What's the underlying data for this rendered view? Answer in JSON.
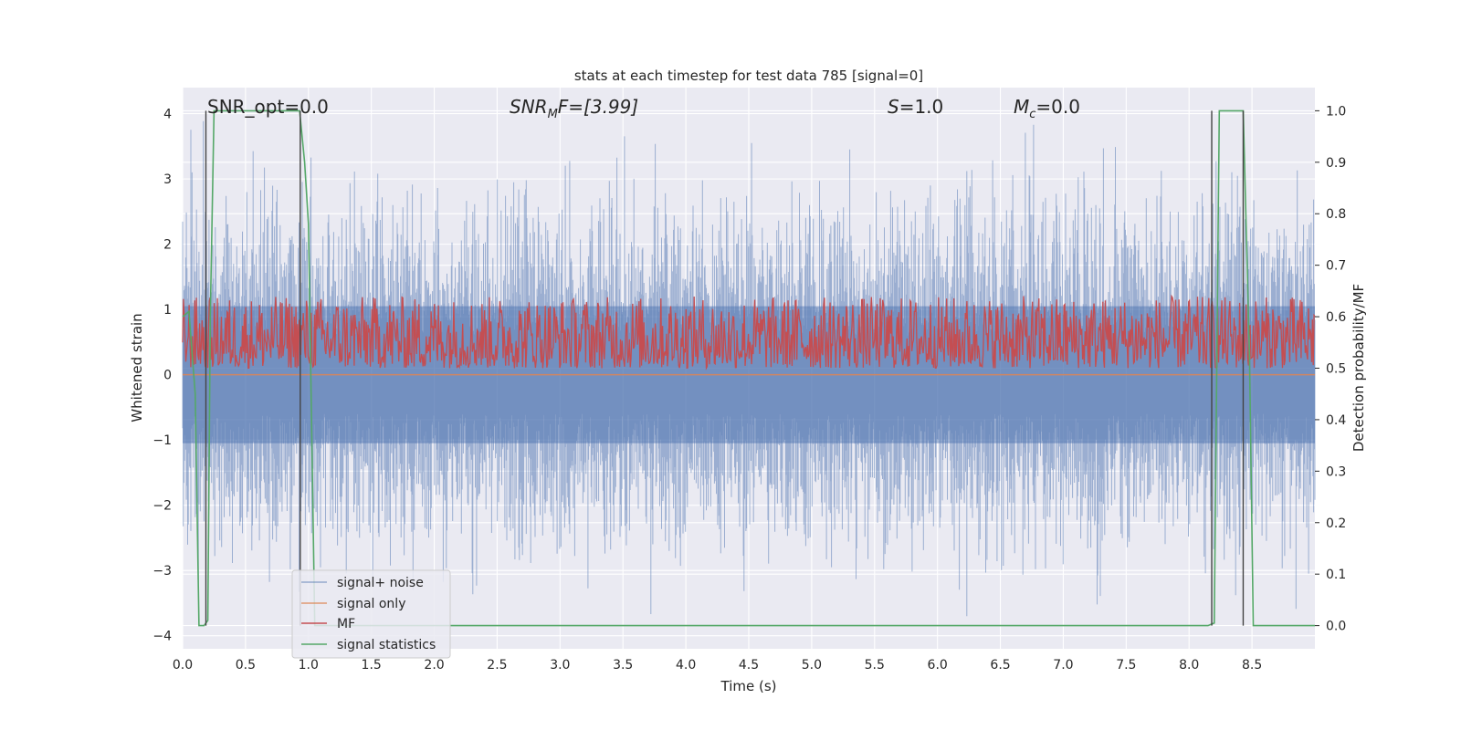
{
  "chart_data": {
    "type": "line",
    "title": "stats at each timestep for test data 785 [signal=0]",
    "xlabel": "Time (s)",
    "ylabel": "Whitened strain",
    "ylabel_right": "Detection probability/MF",
    "xlim": [
      0.0,
      9.0
    ],
    "ylim": [
      -4.2,
      4.4
    ],
    "ylim_right": [
      -0.045,
      1.045
    ],
    "xticks": [
      "0.0",
      "0.5",
      "1.0",
      "1.5",
      "2.0",
      "2.5",
      "3.0",
      "3.5",
      "4.0",
      "4.5",
      "5.0",
      "5.5",
      "6.0",
      "6.5",
      "7.0",
      "7.5",
      "8.0",
      "8.5"
    ],
    "yticks_left": [
      "4",
      "3",
      "2",
      "1",
      "0",
      "−1",
      "−2",
      "−3",
      "−4"
    ],
    "yticks_right": [
      "1.0",
      "0.9",
      "0.8",
      "0.7",
      "0.6",
      "0.5",
      "0.4",
      "0.3",
      "0.2",
      "0.1",
      "0.0"
    ],
    "annotations": {
      "snr_opt": "SNR_opt=0.0",
      "snr_mf_sym": "SNR",
      "snr_mf_sub": "M",
      "snr_mf_rest": "F=[3.99]",
      "s_sym": "S",
      "s_rest": "=1.0",
      "mc_sym": "M",
      "mc_sub": "c",
      "mc_rest": "=0.0"
    },
    "legend_position": "lower-left",
    "grid": true,
    "colors": {
      "background": "#eaeaf2",
      "grid": "#ffffff",
      "signal_noise": "#4c72b0",
      "signal_only": "#dd8452",
      "mf": "#c44e52",
      "signal_statistics": "#55a868",
      "vlines": "#444444"
    },
    "series": [
      {
        "name": "signal+ noise",
        "axis": "left",
        "description_range": [
          -3.7,
          4.0
        ],
        "envelope": [
          [
            0.0,
            3.9
          ],
          [
            9.0,
            3.9
          ]
        ]
      },
      {
        "name": "signal only",
        "axis": "left",
        "x": [
          0.0,
          9.0
        ],
        "y": [
          0.0,
          0.0
        ]
      },
      {
        "name": "MF",
        "axis": "right",
        "range": [
          0.5,
          0.64
        ]
      },
      {
        "name": "signal statistics",
        "axis": "right",
        "x": [
          0.0,
          0.05,
          0.1,
          0.13,
          0.17,
          0.2,
          0.22,
          0.25,
          0.93,
          0.97,
          1.0,
          1.05,
          1.07,
          8.15,
          8.2,
          8.24,
          8.43,
          8.48,
          8.51,
          9.0
        ],
        "y": [
          0.6,
          0.61,
          0.45,
          0.0,
          0.0,
          0.01,
          0.6,
          1.0,
          1.0,
          0.9,
          0.78,
          0.0,
          0.0,
          0.0,
          0.005,
          1.0,
          1.0,
          0.52,
          0.0,
          0.0
        ]
      }
    ],
    "vlines": [
      0.185,
      0.935,
      8.18,
      8.43
    ],
    "legend": [
      "signal+ noise",
      "signal only",
      "MF",
      "signal statistics"
    ]
  }
}
